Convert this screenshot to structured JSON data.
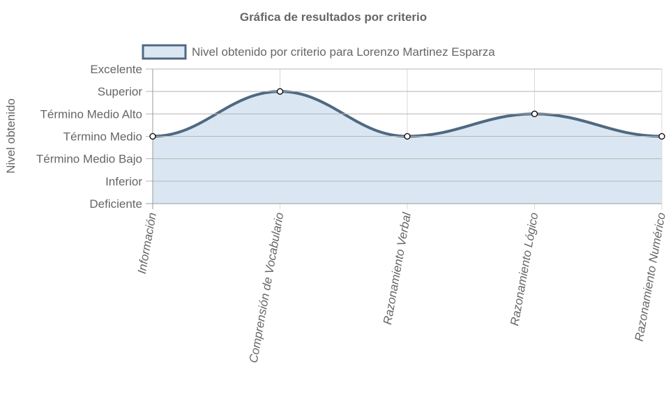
{
  "chart_data": {
    "type": "area",
    "title": "Gráfica de resultados por criterio",
    "xlabel": "",
    "ylabel": "Nivel obtenido",
    "categories": [
      "Información",
      "Comprensión de Vocabulario",
      "Razonamiento Verbal",
      "Razonamiento Lógico",
      "Razonamiento Numérico"
    ],
    "y_levels": [
      "Deficiente",
      "Inferior",
      "Término Medio Bajo",
      "Término Medio",
      "Término Medio Alto",
      "Superior",
      "Excelente"
    ],
    "ylim": [
      0,
      6
    ],
    "series": [
      {
        "name": "Nivel obtenido por criterio para Lorenzo Martinez Esparza",
        "values": [
          3,
          5,
          3,
          4,
          3
        ],
        "value_labels": [
          "Término Medio",
          "Superior",
          "Término Medio",
          "Término Medio Alto",
          "Término Medio"
        ]
      }
    ],
    "colors": {
      "line": "#4f6981",
      "fill": "#dae7f3",
      "grid": "#d9d9d9",
      "axis": "#999999",
      "text": "#666666",
      "title": "#666666"
    },
    "grid": true,
    "legend_position": "top"
  }
}
